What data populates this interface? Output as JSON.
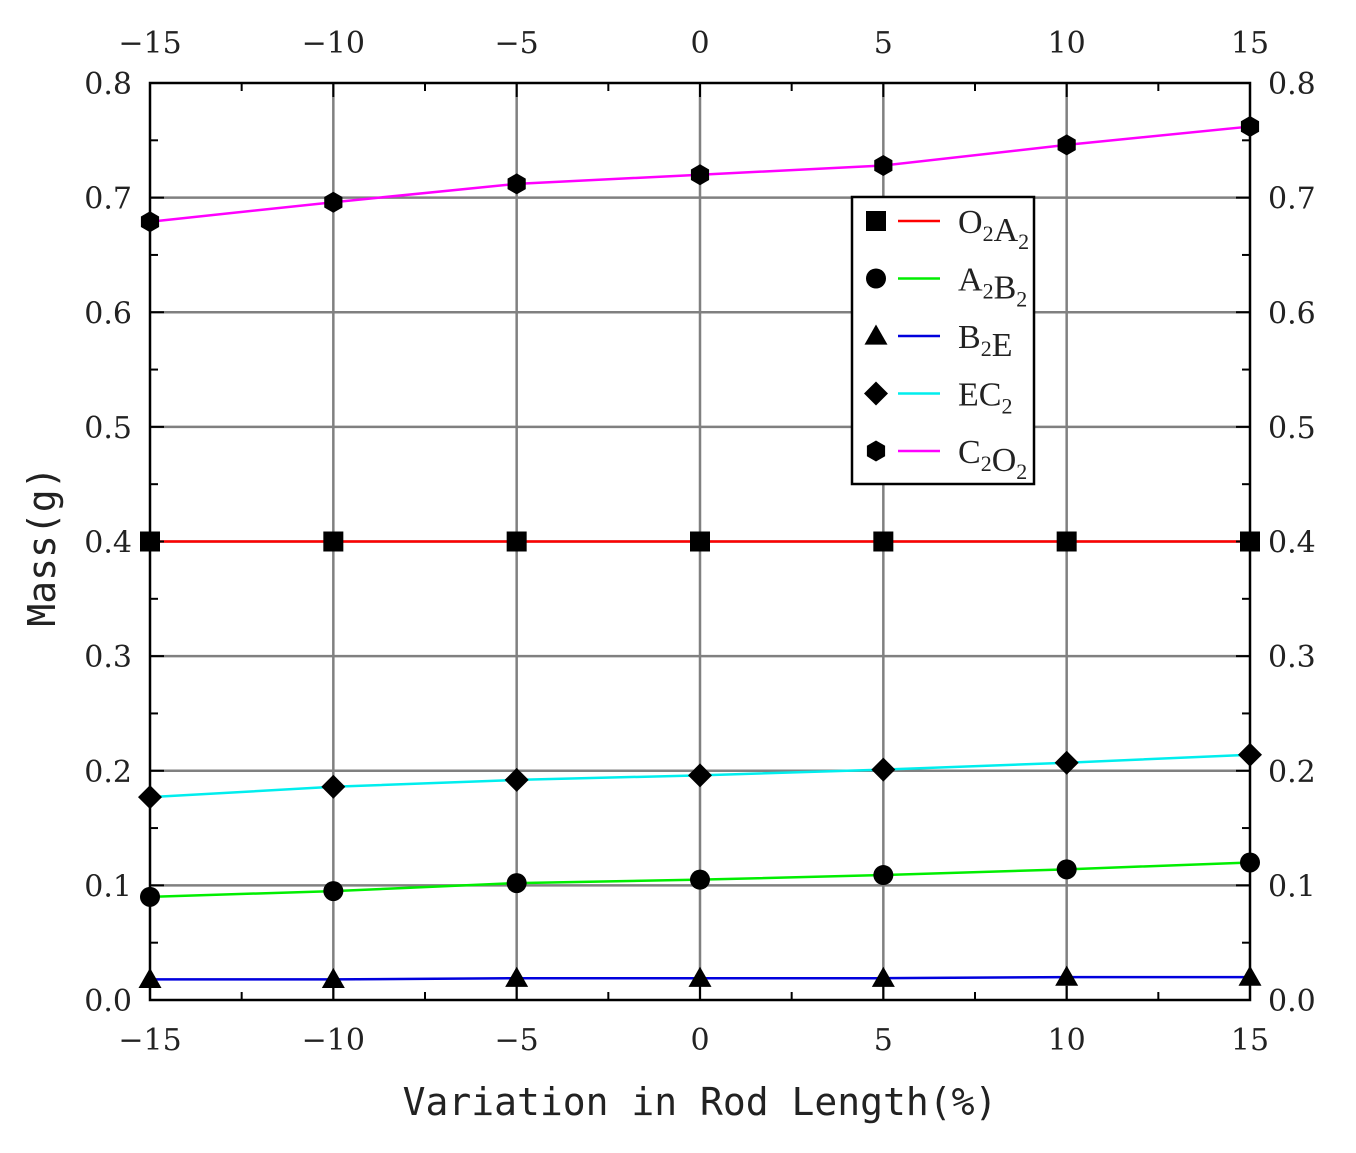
{
  "chart_data": {
    "type": "line",
    "title": "",
    "xlabel": "Variation in Rod Length(%)",
    "ylabel": "Mass(g)",
    "xlim": [
      -15,
      15
    ],
    "ylim": [
      0.0,
      0.8
    ],
    "grid": true,
    "legend_position": "top-right",
    "x": [
      -15,
      -10,
      -5,
      0,
      5,
      10,
      15
    ],
    "x_tick_labels": [
      "−15",
      "−10",
      "−5",
      "0",
      "5",
      "10",
      "15"
    ],
    "y_tick_labels": [
      "0.0",
      "0.1",
      "0.2",
      "0.3",
      "0.4",
      "0.5",
      "0.6",
      "0.7",
      "0.8"
    ],
    "series": [
      {
        "name": "O2A2",
        "label_main": [
          "O",
          "A"
        ],
        "label_sub": [
          "2",
          "2"
        ],
        "color": "#ff0000",
        "marker": "square",
        "values": [
          0.4,
          0.4,
          0.4,
          0.4,
          0.4,
          0.4,
          0.4
        ]
      },
      {
        "name": "A2B2",
        "label_main": [
          "A",
          "B"
        ],
        "label_sub": [
          "2",
          "2"
        ],
        "color": "#00ee00",
        "marker": "circle",
        "values": [
          0.09,
          0.095,
          0.102,
          0.105,
          0.109,
          0.114,
          0.12
        ]
      },
      {
        "name": "B2E",
        "label_main": [
          "B",
          "E"
        ],
        "label_sub": [
          "2",
          ""
        ],
        "color": "#0000dd",
        "marker": "triangle",
        "values": [
          0.018,
          0.018,
          0.019,
          0.019,
          0.019,
          0.02,
          0.02
        ]
      },
      {
        "name": "EC2",
        "label_main": [
          "EC",
          ""
        ],
        "label_sub": [
          "2",
          ""
        ],
        "color": "#00eeee",
        "marker": "diamond",
        "values": [
          0.177,
          0.186,
          0.192,
          0.196,
          0.201,
          0.207,
          0.214
        ]
      },
      {
        "name": "C2O2",
        "label_main": [
          "C",
          "O"
        ],
        "label_sub": [
          "2",
          "2"
        ],
        "color": "#ff00ff",
        "marker": "hexagon",
        "values": [
          0.679,
          0.696,
          0.712,
          0.72,
          0.728,
          0.746,
          0.762
        ]
      }
    ]
  }
}
